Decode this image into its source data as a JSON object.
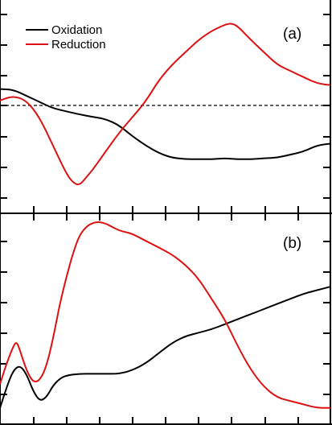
{
  "chart_data": [
    {
      "type": "line",
      "panel_label": "(a)",
      "xlim": [
        0,
        100
      ],
      "ylim": [
        -3.6,
        3.3
      ],
      "grid": false,
      "legend_position": "top-left",
      "reference_lines": [
        {
          "y": 0,
          "style": "dashed"
        }
      ],
      "series": [
        {
          "name": "Oxidation",
          "color": "#000000",
          "x": [
            0,
            4,
            8,
            12,
            16,
            20,
            24,
            28,
            32,
            36,
            40,
            44,
            48,
            52,
            56,
            60,
            64,
            68,
            72,
            76,
            80,
            84,
            88,
            92,
            96,
            100
          ],
          "y": [
            0.42,
            0.4,
            0.2,
            0.0,
            -0.2,
            -0.3,
            -0.4,
            -0.48,
            -0.55,
            -0.75,
            -1.1,
            -1.4,
            -1.65,
            -1.8,
            -1.85,
            -1.85,
            -1.85,
            -1.82,
            -1.85,
            -1.85,
            -1.82,
            -1.8,
            -1.7,
            -1.6,
            -1.4,
            -1.35
          ]
        },
        {
          "name": "Reduction",
          "color": "#dd1111",
          "x": [
            0,
            4,
            8,
            12,
            16,
            20,
            22,
            24,
            26,
            28,
            32,
            36,
            40,
            44,
            48,
            52,
            56,
            60,
            64,
            68,
            70,
            72,
            76,
            80,
            84,
            88,
            92,
            96,
            100
          ],
          "y": [
            0.05,
            0.2,
            0.05,
            -0.5,
            -1.4,
            -2.3,
            -2.6,
            -2.7,
            -2.45,
            -2.2,
            -1.6,
            -1.0,
            -0.5,
            0.0,
            0.7,
            1.2,
            1.6,
            2.0,
            2.3,
            2.5,
            2.55,
            2.45,
            2.0,
            1.6,
            1.2,
            1.0,
            0.8,
            0.6,
            0.55
          ]
        }
      ]
    },
    {
      "type": "line",
      "panel_label": "(b)",
      "xlim": [
        0,
        100
      ],
      "ylim": [
        -0.5,
        5.7
      ],
      "grid": false,
      "series": [
        {
          "color": "#000000",
          "x": [
            0,
            2,
            4,
            6,
            8,
            10,
            12,
            14,
            16,
            18,
            20,
            24,
            28,
            32,
            36,
            40,
            44,
            48,
            52,
            56,
            60,
            64,
            68,
            72,
            76,
            80,
            84,
            88,
            92,
            96,
            100
          ],
          "y": [
            0.0,
            0.6,
            1.1,
            1.25,
            1.0,
            0.5,
            0.2,
            0.3,
            0.65,
            0.85,
            0.95,
            1.0,
            1.0,
            1.0,
            1.0,
            1.1,
            1.3,
            1.6,
            1.9,
            2.1,
            2.2,
            2.3,
            2.45,
            2.6,
            2.75,
            2.9,
            3.05,
            3.2,
            3.35,
            3.45,
            3.55
          ]
        },
        {
          "color": "#dd1111",
          "x": [
            0,
            2,
            4,
            5,
            6,
            8,
            10,
            12,
            14,
            16,
            18,
            20,
            22,
            24,
            26,
            28,
            30,
            32,
            34,
            36,
            38,
            40,
            44,
            48,
            52,
            56,
            60,
            64,
            68,
            72,
            76,
            80,
            84,
            88,
            92,
            96,
            100
          ],
          "y": [
            0.7,
            1.3,
            1.8,
            1.95,
            1.7,
            1.1,
            0.75,
            0.8,
            1.2,
            2.0,
            3.0,
            3.8,
            4.5,
            5.05,
            5.3,
            5.42,
            5.45,
            5.4,
            5.3,
            5.2,
            5.15,
            5.1,
            4.9,
            4.7,
            4.5,
            4.2,
            3.8,
            3.2,
            2.6,
            1.8,
            1.1,
            0.6,
            0.3,
            0.2,
            0.1,
            0.0,
            0.0
          ]
        }
      ]
    }
  ]
}
